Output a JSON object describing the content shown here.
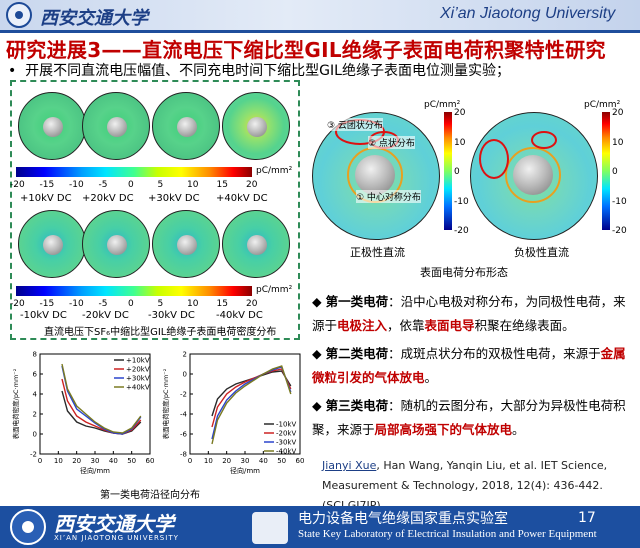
{
  "header": {
    "university_cn": "西安交通大学",
    "university_en": "Xi’an Jiaotong University"
  },
  "title": "研究进展3——直流电压下缩比型GIL绝缘子表面电荷积聚特性研究",
  "subtitle": "开展不同直流电压幅值、不同充电时间下缩比型GIL绝缘子表面电位测量实验；",
  "left_panel": {
    "positive_labels": [
      "+10kV DC",
      "+20kV DC",
      "+30kV DC",
      "+40kV DC"
    ],
    "negative_labels": [
      "-10kV DC",
      "-20kV DC",
      "-30kV DC",
      "-40kV DC"
    ],
    "colorbar_ticks": [
      "-20",
      "-15",
      "-10",
      "-5",
      "0",
      "5",
      "10",
      "15",
      "20"
    ],
    "colorbar_unit": "pC/mm²",
    "caption": "直流电压下SF₆中缩比型GIL绝缘子表面电荷密度分布"
  },
  "right_panel": {
    "unit": "pC/mm²",
    "vbar_ticks": [
      "20",
      "10",
      "0",
      "-10",
      "-20"
    ],
    "annotation_1": "① 中心对称分布",
    "annotation_2": "② 点状分布",
    "annotation_3": "③ 云团状分布",
    "label_positive": "正极性直流",
    "label_negative": "负极性直流",
    "caption": "表面电荷分布形态"
  },
  "bullets": [
    {
      "lead": "第一类电荷",
      "text_a": "：沿中心电极对称分布，为同极性电荷，来源于",
      "red": "电极注入",
      "text_b": "，依靠",
      "red2": "表面电导",
      "text_c": "积聚在绝缘表面。"
    },
    {
      "lead": "第二类电荷",
      "text_a": "：成斑点状分布的双极性电荷，来源于",
      "red": "金属微粒引发的气体放电",
      "text_b": "。"
    },
    {
      "lead": "第三类电荷",
      "text_a": "：随机的云图分布，大部分为异极性电荷积聚，来源于",
      "red": "局部高场强下的气体放电",
      "text_b": "。"
    }
  ],
  "reference": {
    "author": "Jianyi Xue",
    "rest": ", Han Wang, Yanqin Liu, et al. IET Science, Measurement & Technology, 2018, 12(4): 436-442. (SCI GJ7IP)"
  },
  "charts_caption": "第一类电荷沿径向分布",
  "chart_data": [
    {
      "type": "line",
      "xlabel": "径向/mm",
      "ylabel": "表面电荷密度/pC·mm⁻²",
      "xlim": [
        0,
        60
      ],
      "ylim": [
        -2,
        8
      ],
      "xticks": [
        "0",
        "10",
        "20",
        "30",
        "40",
        "50",
        "60"
      ],
      "yticks": [
        "-2",
        "0",
        "2",
        "4",
        "6",
        "8"
      ],
      "x": [
        12,
        15,
        20,
        25,
        30,
        35,
        40,
        45,
        50,
        55
      ],
      "series": [
        {
          "name": "+10kV",
          "color": "#2a2a2a",
          "values": [
            4.3,
            2.3,
            1.2,
            0.8,
            0.6,
            0.3,
            0.1,
            0.0,
            0.3,
            1.2
          ]
        },
        {
          "name": "+20kV",
          "color": "#cc2222",
          "values": [
            5.5,
            3.3,
            1.8,
            1.2,
            0.8,
            0.4,
            0.1,
            0.0,
            0.4,
            1.4
          ]
        },
        {
          "name": "+30kV",
          "color": "#2a44cc",
          "values": [
            6.8,
            4.3,
            2.5,
            1.8,
            1.1,
            0.5,
            0.1,
            0.0,
            0.5,
            1.7
          ]
        },
        {
          "name": "+40kV",
          "color": "#7a7a22",
          "values": [
            7.0,
            4.5,
            2.8,
            2.0,
            1.2,
            0.6,
            0.2,
            0.1,
            0.6,
            1.8
          ]
        }
      ]
    },
    {
      "type": "line",
      "xlabel": "径向/mm",
      "ylabel": "表面电荷密度/pC·mm⁻²",
      "xlim": [
        0,
        60
      ],
      "ylim": [
        -8,
        2
      ],
      "xticks": [
        "0",
        "10",
        "20",
        "30",
        "40",
        "50",
        "60"
      ],
      "yticks": [
        "-8",
        "-6",
        "-4",
        "-2",
        "0",
        "2"
      ],
      "x": [
        12,
        15,
        20,
        25,
        30,
        35,
        40,
        45,
        50,
        55
      ],
      "series": [
        {
          "name": "-10kV",
          "color": "#2a2a2a",
          "values": [
            -4.2,
            -2.5,
            -1.5,
            -1.0,
            -0.7,
            -0.4,
            -0.1,
            0.2,
            0.3,
            -1.2
          ]
        },
        {
          "name": "-20kV",
          "color": "#cc2222",
          "values": [
            -5.3,
            -3.3,
            -2.0,
            -1.3,
            -0.8,
            -0.4,
            0.0,
            0.3,
            0.5,
            -1.5
          ]
        },
        {
          "name": "-30kV",
          "color": "#2a44cc",
          "values": [
            -6.5,
            -4.2,
            -2.6,
            -1.7,
            -1.0,
            -0.5,
            0.0,
            0.4,
            0.7,
            -1.8
          ]
        },
        {
          "name": "-40kV",
          "color": "#7a7a22",
          "values": [
            -7.0,
            -4.6,
            -2.9,
            -1.9,
            -1.2,
            -0.6,
            0.0,
            0.5,
            0.8,
            -2.0
          ]
        }
      ]
    }
  ],
  "footer": {
    "university_cn": "西安交通大学",
    "university_en": "XI’AN JIAOTONG UNIVERSITY",
    "lab_cn": "电力设备电气绝缘国家重点实验室",
    "lab_en": "State Key Laboratory of Electrical Insulation and Power Equipment",
    "page_number": "17"
  }
}
